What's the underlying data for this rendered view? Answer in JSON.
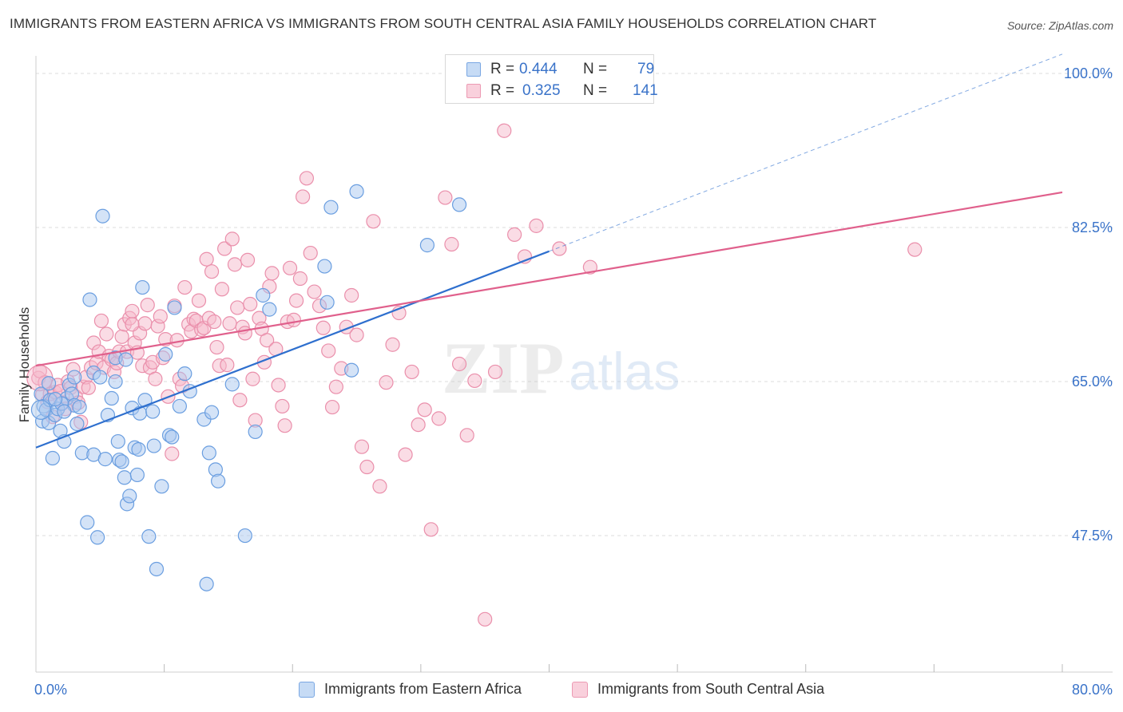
{
  "title": "IMMIGRANTS FROM EASTERN AFRICA VS IMMIGRANTS FROM SOUTH CENTRAL ASIA FAMILY HOUSEHOLDS CORRELATION CHART",
  "source": "Source: ZipAtlas.com",
  "watermark": {
    "zip": "ZIP",
    "atlas": "atlas"
  },
  "legend": {
    "r_label": "R =",
    "n_label": "N =",
    "series_1": {
      "r": "0.444",
      "n": "79"
    },
    "series_2": {
      "r": "0.325",
      "n": "141"
    }
  },
  "colors": {
    "blue_fill": "#a9c8ef",
    "blue_stroke": "#6a9ee0",
    "blue_line": "#2e6fce",
    "pink_fill": "#f6b9cb",
    "pink_stroke": "#ea8fab",
    "pink_line": "#e0608c",
    "axis_label": "#3a73c9",
    "grid": "#dddddd"
  },
  "chart_data": {
    "type": "scatter",
    "title": "IMMIGRANTS FROM EASTERN AFRICA VS IMMIGRANTS FROM SOUTH CENTRAL ASIA FAMILY HOUSEHOLDS CORRELATION CHART",
    "xlabel": "",
    "ylabel": "Family Households",
    "xlim": [
      0,
      80
    ],
    "ylim": [
      32,
      102
    ],
    "x_tick_labels": [
      "0.0%",
      "80.0%"
    ],
    "y_ticks": [
      47.5,
      65.0,
      82.5,
      100.0
    ],
    "y_tick_labels": [
      "47.5%",
      "65.0%",
      "82.5%",
      "100.0%"
    ],
    "series": [
      {
        "name": "Immigrants from Eastern Africa",
        "color": "#6a9ee0",
        "r": 0.444,
        "n": 79,
        "trend": {
          "x0": 0,
          "y0": 57.5,
          "x1": 40,
          "y1": 79.8,
          "dashed_to_x": 80,
          "dashed_to_y": 102.2
        },
        "points": [
          [
            0.4,
            63.6
          ],
          [
            0.5,
            60.5
          ],
          [
            0.6,
            62.2
          ],
          [
            0.8,
            61.8
          ],
          [
            1.0,
            60.3
          ],
          [
            1.1,
            62.9
          ],
          [
            1.3,
            56.3
          ],
          [
            1.5,
            61.2
          ],
          [
            1.7,
            61.9
          ],
          [
            1.9,
            59.4
          ],
          [
            2.2,
            58.2
          ],
          [
            2.4,
            63.1
          ],
          [
            2.6,
            64.6
          ],
          [
            2.8,
            63.6
          ],
          [
            3.0,
            62.3
          ],
          [
            3.2,
            60.2
          ],
          [
            3.4,
            62.1
          ],
          [
            3.6,
            56.9
          ],
          [
            4.0,
            49.0
          ],
          [
            4.2,
            74.3
          ],
          [
            4.5,
            56.7
          ],
          [
            4.8,
            47.3
          ],
          [
            5.2,
            83.8
          ],
          [
            5.4,
            56.2
          ],
          [
            5.6,
            61.2
          ],
          [
            5.9,
            63.1
          ],
          [
            6.2,
            67.7
          ],
          [
            6.5,
            56.1
          ],
          [
            6.7,
            55.9
          ],
          [
            6.9,
            54.1
          ],
          [
            7.1,
            51.1
          ],
          [
            7.3,
            52.0
          ],
          [
            7.5,
            62.0
          ],
          [
            7.7,
            57.5
          ],
          [
            7.9,
            54.4
          ],
          [
            8.1,
            61.4
          ],
          [
            8.3,
            75.7
          ],
          [
            8.5,
            62.9
          ],
          [
            8.8,
            47.4
          ],
          [
            9.1,
            61.6
          ],
          [
            9.4,
            43.7
          ],
          [
            9.8,
            53.1
          ],
          [
            10.1,
            68.1
          ],
          [
            10.4,
            58.9
          ],
          [
            10.6,
            58.7
          ],
          [
            10.8,
            73.4
          ],
          [
            11.2,
            62.2
          ],
          [
            11.6,
            65.9
          ],
          [
            12.0,
            63.9
          ],
          [
            13.1,
            60.7
          ],
          [
            13.3,
            42.0
          ],
          [
            13.5,
            56.9
          ],
          [
            13.7,
            61.5
          ],
          [
            14.0,
            55.0
          ],
          [
            14.2,
            53.7
          ],
          [
            15.3,
            64.7
          ],
          [
            16.3,
            47.5
          ],
          [
            17.1,
            59.3
          ],
          [
            17.7,
            74.8
          ],
          [
            18.2,
            73.2
          ],
          [
            22.5,
            78.1
          ],
          [
            22.7,
            74.0
          ],
          [
            23.0,
            84.8
          ],
          [
            24.6,
            66.3
          ],
          [
            25.0,
            86.6
          ],
          [
            30.5,
            80.5
          ],
          [
            33.0,
            85.1
          ],
          [
            6.2,
            65.0
          ],
          [
            7.0,
            67.5
          ],
          [
            3.0,
            65.5
          ],
          [
            1.0,
            64.8
          ],
          [
            2.0,
            62.5
          ],
          [
            4.5,
            66.0
          ],
          [
            5.0,
            65.5
          ],
          [
            2.2,
            61.6
          ],
          [
            1.5,
            63.0
          ],
          [
            9.2,
            57.7
          ],
          [
            6.4,
            58.2
          ],
          [
            8.0,
            57.3
          ]
        ]
      },
      {
        "name": "Immigrants from South Central Asia",
        "color": "#ea8fab",
        "r": 0.325,
        "n": 141,
        "trend": {
          "x0": 0,
          "y0": 66.8,
          "x1": 80,
          "y1": 86.5
        },
        "points": [
          [
            0.2,
            65.4
          ],
          [
            0.3,
            66.2
          ],
          [
            0.5,
            63.5
          ],
          [
            0.7,
            64.9
          ],
          [
            0.9,
            62.7
          ],
          [
            1.1,
            63.6
          ],
          [
            1.3,
            61.0
          ],
          [
            1.5,
            63.8
          ],
          [
            1.7,
            64.6
          ],
          [
            1.9,
            63.9
          ],
          [
            2.1,
            62.6
          ],
          [
            2.3,
            61.9
          ],
          [
            2.5,
            65.0
          ],
          [
            2.7,
            64.3
          ],
          [
            2.9,
            66.4
          ],
          [
            3.1,
            63.3
          ],
          [
            3.3,
            62.6
          ],
          [
            3.5,
            60.4
          ],
          [
            3.7,
            64.4
          ],
          [
            3.9,
            65.5
          ],
          [
            4.1,
            64.3
          ],
          [
            4.3,
            66.6
          ],
          [
            4.5,
            69.4
          ],
          [
            4.7,
            67.1
          ],
          [
            4.9,
            68.4
          ],
          [
            5.1,
            71.9
          ],
          [
            5.3,
            66.6
          ],
          [
            5.5,
            70.4
          ],
          [
            5.7,
            67.9
          ],
          [
            5.9,
            67.5
          ],
          [
            6.1,
            66.1
          ],
          [
            6.3,
            67.1
          ],
          [
            6.5,
            68.4
          ],
          [
            6.7,
            70.1
          ],
          [
            6.9,
            71.5
          ],
          [
            7.1,
            68.4
          ],
          [
            7.3,
            72.2
          ],
          [
            7.5,
            73.0
          ],
          [
            7.7,
            69.4
          ],
          [
            7.9,
            68.3
          ],
          [
            8.1,
            70.5
          ],
          [
            8.3,
            66.8
          ],
          [
            8.5,
            71.6
          ],
          [
            8.7,
            73.7
          ],
          [
            8.9,
            66.6
          ],
          [
            9.1,
            67.2
          ],
          [
            9.3,
            65.3
          ],
          [
            9.5,
            71.3
          ],
          [
            9.7,
            72.4
          ],
          [
            9.9,
            67.7
          ],
          [
            10.1,
            69.8
          ],
          [
            10.3,
            63.3
          ],
          [
            10.6,
            56.8
          ],
          [
            10.8,
            73.6
          ],
          [
            11.0,
            69.7
          ],
          [
            11.2,
            65.3
          ],
          [
            11.4,
            64.5
          ],
          [
            11.6,
            75.7
          ],
          [
            11.9,
            71.5
          ],
          [
            12.1,
            70.7
          ],
          [
            12.3,
            72.1
          ],
          [
            12.5,
            71.9
          ],
          [
            12.7,
            74.2
          ],
          [
            12.9,
            70.9
          ],
          [
            13.1,
            71.1
          ],
          [
            13.3,
            78.9
          ],
          [
            13.5,
            72.2
          ],
          [
            13.7,
            77.5
          ],
          [
            13.9,
            71.8
          ],
          [
            14.1,
            68.9
          ],
          [
            14.3,
            66.8
          ],
          [
            14.5,
            75.5
          ],
          [
            14.7,
            80.1
          ],
          [
            14.9,
            66.9
          ],
          [
            15.1,
            71.6
          ],
          [
            15.3,
            81.2
          ],
          [
            15.5,
            78.3
          ],
          [
            15.7,
            73.4
          ],
          [
            15.9,
            62.9
          ],
          [
            16.1,
            71.2
          ],
          [
            16.3,
            70.5
          ],
          [
            16.5,
            78.8
          ],
          [
            16.7,
            73.8
          ],
          [
            16.9,
            65.3
          ],
          [
            17.1,
            60.6
          ],
          [
            17.4,
            72.2
          ],
          [
            17.6,
            71.0
          ],
          [
            17.8,
            67.2
          ],
          [
            18.0,
            69.7
          ],
          [
            18.2,
            75.8
          ],
          [
            18.4,
            77.3
          ],
          [
            18.7,
            68.7
          ],
          [
            18.9,
            64.6
          ],
          [
            19.2,
            62.2
          ],
          [
            19.4,
            60.0
          ],
          [
            19.6,
            71.8
          ],
          [
            19.8,
            77.9
          ],
          [
            20.1,
            72.0
          ],
          [
            20.3,
            74.2
          ],
          [
            20.6,
            76.7
          ],
          [
            20.8,
            86.0
          ],
          [
            21.1,
            88.1
          ],
          [
            21.4,
            79.6
          ],
          [
            21.7,
            75.2
          ],
          [
            22.1,
            73.6
          ],
          [
            22.4,
            71.1
          ],
          [
            22.8,
            68.5
          ],
          [
            23.1,
            62.1
          ],
          [
            23.4,
            64.4
          ],
          [
            23.8,
            66.5
          ],
          [
            24.2,
            71.2
          ],
          [
            24.6,
            74.8
          ],
          [
            25.0,
            70.3
          ],
          [
            25.4,
            57.6
          ],
          [
            25.8,
            55.3
          ],
          [
            26.3,
            83.2
          ],
          [
            26.8,
            53.1
          ],
          [
            27.3,
            64.9
          ],
          [
            27.8,
            69.2
          ],
          [
            28.3,
            72.8
          ],
          [
            28.8,
            56.7
          ],
          [
            29.3,
            66.1
          ],
          [
            29.8,
            60.1
          ],
          [
            30.3,
            61.8
          ],
          [
            30.8,
            48.2
          ],
          [
            31.4,
            60.8
          ],
          [
            31.9,
            85.9
          ],
          [
            32.4,
            80.6
          ],
          [
            33.0,
            67.0
          ],
          [
            33.6,
            58.9
          ],
          [
            34.2,
            65.1
          ],
          [
            35.0,
            38.0
          ],
          [
            35.8,
            66.1
          ],
          [
            36.5,
            93.5
          ],
          [
            37.3,
            81.7
          ],
          [
            38.1,
            79.2
          ],
          [
            39.0,
            82.7
          ],
          [
            40.8,
            80.1
          ],
          [
            43.2,
            78.0
          ],
          [
            68.5,
            80.0
          ],
          [
            7.5,
            71.5
          ]
        ]
      }
    ]
  },
  "bottom_legend": {
    "series_1_label": "Immigrants from Eastern Africa",
    "series_2_label": "Immigrants from South Central Asia"
  }
}
